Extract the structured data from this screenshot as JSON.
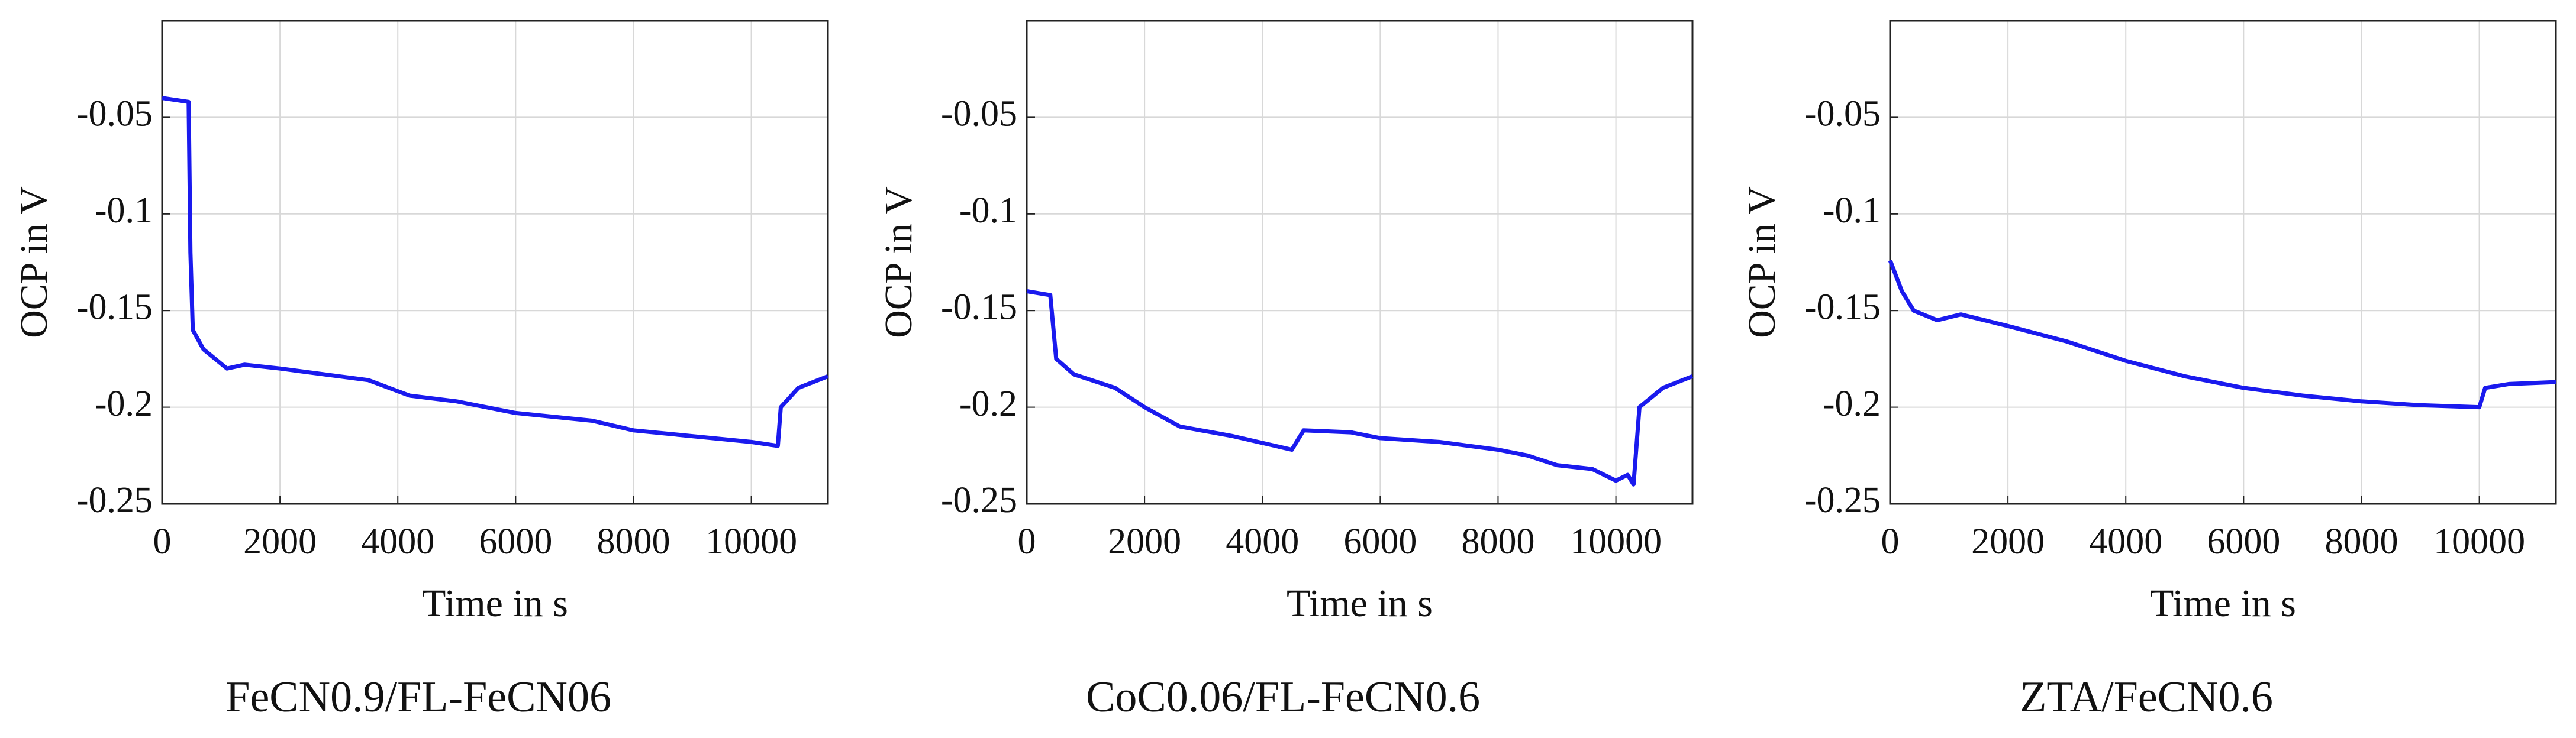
{
  "chart_data": [
    {
      "type": "line",
      "caption": "FeCN0.9/FL-FeCN06",
      "xlabel": "Time in s",
      "ylabel": "OCP in V",
      "color": "#1a1aee",
      "grid": true,
      "xlim": [
        0,
        11300
      ],
      "ylim": [
        -0.25,
        0
      ],
      "xticks": [
        0,
        2000,
        4000,
        6000,
        8000,
        10000
      ],
      "yticks": [
        -0.25,
        -0.2,
        -0.15,
        -0.1,
        -0.05
      ],
      "x": [
        0,
        450,
        480,
        520,
        700,
        1100,
        1400,
        2000,
        3000,
        3500,
        4200,
        5000,
        6000,
        7300,
        8000,
        9000,
        10000,
        10450,
        10500,
        10800,
        11300
      ],
      "values": [
        -0.04,
        -0.042,
        -0.12,
        -0.16,
        -0.17,
        -0.18,
        -0.178,
        -0.18,
        -0.184,
        -0.186,
        -0.194,
        -0.197,
        -0.203,
        -0.207,
        -0.212,
        -0.215,
        -0.218,
        -0.22,
        -0.2,
        -0.19,
        -0.184
      ]
    },
    {
      "type": "line",
      "caption": "CoC0.06/FL-FeCN0.6",
      "xlabel": "Time in s",
      "ylabel": "OCP in V",
      "color": "#1a1aee",
      "grid": true,
      "xlim": [
        0,
        11300
      ],
      "ylim": [
        -0.25,
        0
      ],
      "xticks": [
        0,
        2000,
        4000,
        6000,
        8000,
        10000
      ],
      "yticks": [
        -0.25,
        -0.2,
        -0.15,
        -0.1,
        -0.05
      ],
      "x": [
        0,
        400,
        500,
        800,
        1500,
        2000,
        2600,
        3500,
        4500,
        4700,
        5500,
        6000,
        7000,
        8000,
        8500,
        9000,
        9600,
        10000,
        10200,
        10300,
        10400,
        10800,
        11300
      ],
      "values": [
        -0.14,
        -0.142,
        -0.175,
        -0.183,
        -0.19,
        -0.2,
        -0.21,
        -0.215,
        -0.222,
        -0.212,
        -0.213,
        -0.216,
        -0.218,
        -0.222,
        -0.225,
        -0.23,
        -0.232,
        -0.238,
        -0.235,
        -0.24,
        -0.2,
        -0.19,
        -0.184
      ]
    },
    {
      "type": "line",
      "caption": "ZTA/FeCN0.6",
      "xlabel": "Time in s",
      "ylabel": "OCP in V",
      "color": "#1a1aee",
      "grid": true,
      "xlim": [
        0,
        11300
      ],
      "ylim": [
        -0.25,
        0
      ],
      "xticks": [
        0,
        2000,
        4000,
        6000,
        8000,
        10000
      ],
      "yticks": [
        -0.25,
        -0.2,
        -0.15,
        -0.1,
        -0.05
      ],
      "x": [
        0,
        200,
        400,
        800,
        1200,
        2000,
        3000,
        4000,
        5000,
        6000,
        7000,
        8000,
        9000,
        10000,
        10100,
        10500,
        11300
      ],
      "values": [
        -0.124,
        -0.14,
        -0.15,
        -0.155,
        -0.152,
        -0.158,
        -0.166,
        -0.176,
        -0.184,
        -0.19,
        -0.194,
        -0.197,
        -0.199,
        -0.2,
        -0.19,
        -0.188,
        -0.187
      ]
    }
  ]
}
